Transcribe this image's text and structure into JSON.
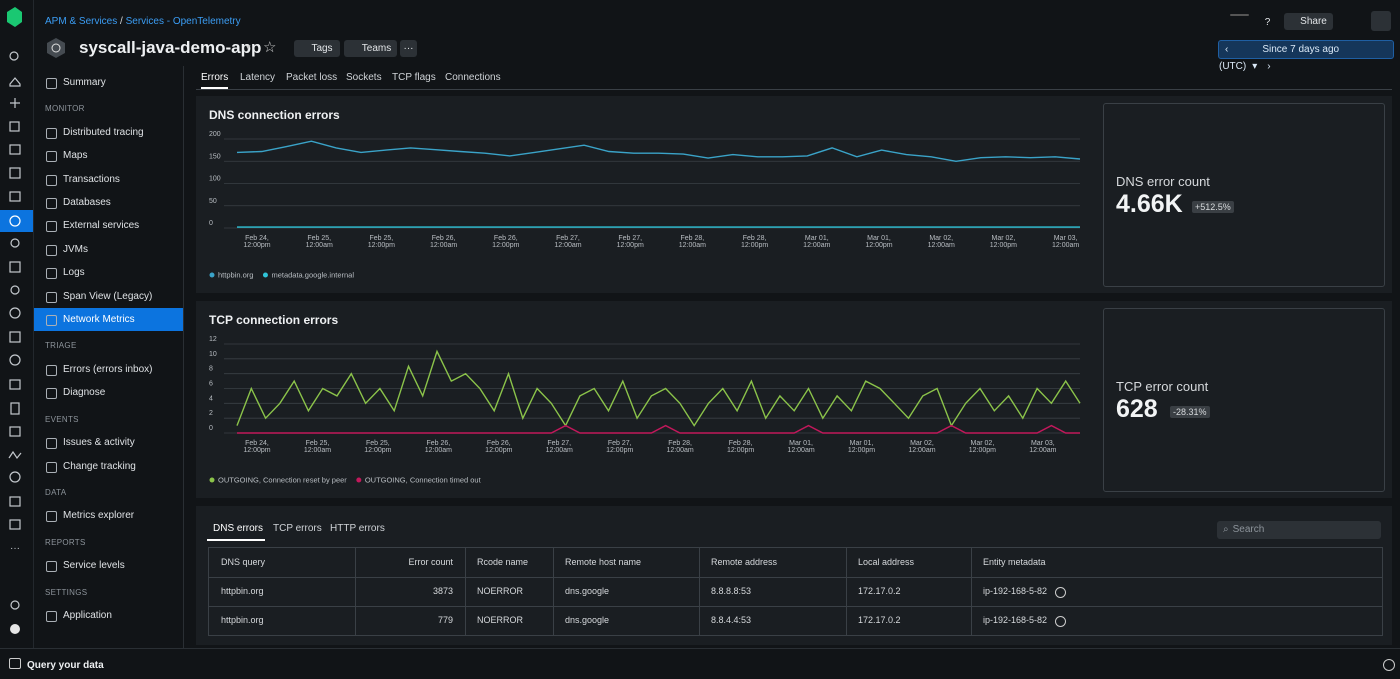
{
  "breadcrumb": {
    "parent": "APM & Services",
    "separator": "/",
    "current": "Services - OpenTelemetry"
  },
  "entity_name": "syscall-java-demo-app",
  "header_buttons": {
    "tags": "Tags",
    "teams": "Teams",
    "more": "···",
    "share": "Share"
  },
  "time_picker": "Since 7 days ago (UTC)",
  "sidebar": {
    "summary": "Summary",
    "sections": [
      {
        "heading": "MONITOR",
        "items": [
          "Distributed tracing",
          "Maps",
          "Transactions",
          "Databases",
          "External services",
          "JVMs",
          "Logs",
          "Span View (Legacy)",
          "Network Metrics"
        ]
      },
      {
        "heading": "TRIAGE",
        "items": [
          "Errors (errors inbox)",
          "Diagnose"
        ]
      },
      {
        "heading": "EVENTS",
        "items": [
          "Issues & activity",
          "Change tracking"
        ]
      },
      {
        "heading": "DATA",
        "items": [
          "Metrics explorer"
        ]
      },
      {
        "heading": "REPORTS",
        "items": [
          "Service levels"
        ]
      },
      {
        "heading": "SETTINGS",
        "items": [
          "Application"
        ]
      }
    ],
    "active": "Network Metrics"
  },
  "tabs": [
    "Errors",
    "Latency",
    "Packet loss",
    "Sockets",
    "TCP flags",
    "Connections"
  ],
  "dns_chart": {
    "type": "line",
    "title": "DNS connection errors",
    "ylim": [
      0,
      200
    ],
    "yticks": [
      0,
      50,
      100,
      150,
      200
    ],
    "x_tick_labels": [
      {
        "date": "Feb 24,",
        "time": "12:00pm"
      },
      {
        "date": "Feb 25,",
        "time": "12:00am"
      },
      {
        "date": "Feb 25,",
        "time": "12:00pm"
      },
      {
        "date": "Feb 26,",
        "time": "12:00am"
      },
      {
        "date": "Feb 26,",
        "time": "12:00pm"
      },
      {
        "date": "Feb 27,",
        "time": "12:00am"
      },
      {
        "date": "Feb 27,",
        "time": "12:00pm"
      },
      {
        "date": "Feb 28,",
        "time": "12:00am"
      },
      {
        "date": "Feb 28,",
        "time": "12:00pm"
      },
      {
        "date": "Mar 01,",
        "time": "12:00am"
      },
      {
        "date": "Mar 01,",
        "time": "12:00pm"
      },
      {
        "date": "Mar 02,",
        "time": "12:00am"
      },
      {
        "date": "Mar 02,",
        "time": "12:00pm"
      },
      {
        "date": "Mar 03,",
        "time": "12:00am"
      }
    ],
    "series": [
      {
        "name": "httpbin.org",
        "color": "#3aa3c8",
        "values": [
          170,
          172,
          183,
          195,
          180,
          170,
          175,
          180,
          176,
          172,
          168,
          162,
          170,
          178,
          186,
          172,
          168,
          168,
          166,
          157,
          165,
          160,
          160,
          162,
          180,
          160,
          175,
          165,
          160,
          150,
          158,
          160,
          158,
          160,
          155
        ]
      },
      {
        "name": "metadata.google.internal",
        "color": "#2fc4d8",
        "values": [
          2,
          2,
          2,
          2,
          2,
          2,
          2,
          2,
          2,
          2,
          2,
          2,
          2,
          2,
          2,
          2,
          2,
          2,
          2,
          2,
          2,
          2,
          2,
          2,
          2,
          2,
          2,
          2,
          2,
          2,
          2,
          2,
          2,
          2,
          2
        ]
      }
    ]
  },
  "dns_billboard": {
    "label": "DNS error count",
    "value": "4.66K",
    "change": "+512.5%"
  },
  "tcp_chart": {
    "type": "line",
    "title": "TCP connection errors",
    "ylim": [
      0,
      12
    ],
    "yticks": [
      0,
      2,
      4,
      6,
      8,
      10,
      12
    ],
    "x_tick_labels": [
      {
        "date": "Feb 24,",
        "time": "12:00pm"
      },
      {
        "date": "Feb 25,",
        "time": "12:00am"
      },
      {
        "date": "Feb 25,",
        "time": "12:00pm"
      },
      {
        "date": "Feb 26,",
        "time": "12:00am"
      },
      {
        "date": "Feb 26,",
        "time": "12:00pm"
      },
      {
        "date": "Feb 27,",
        "time": "12:00am"
      },
      {
        "date": "Feb 27,",
        "time": "12:00pm"
      },
      {
        "date": "Feb 28,",
        "time": "12:00am"
      },
      {
        "date": "Feb 28,",
        "time": "12:00pm"
      },
      {
        "date": "Mar 01,",
        "time": "12:00am"
      },
      {
        "date": "Mar 01,",
        "time": "12:00pm"
      },
      {
        "date": "Mar 02,",
        "time": "12:00am"
      },
      {
        "date": "Mar 02,",
        "time": "12:00pm"
      },
      {
        "date": "Mar 03,",
        "time": "12:00am"
      }
    ],
    "series": [
      {
        "name": "OUTGOING, Connection reset by peer",
        "color": "#8bc34a",
        "values": [
          1,
          6,
          2,
          4,
          7,
          3,
          6,
          5,
          8,
          4,
          6,
          3,
          9,
          5,
          11,
          7,
          8,
          6,
          3,
          8,
          2,
          6,
          4,
          1,
          5,
          6,
          3,
          7,
          2,
          5,
          6,
          4,
          1,
          4,
          6,
          3,
          7,
          2,
          5,
          3,
          6,
          2,
          5,
          3,
          7,
          6,
          4,
          2,
          5,
          6,
          1,
          4,
          6,
          3,
          5,
          2,
          6,
          4,
          7,
          4
        ]
      },
      {
        "name": "OUTGOING, Connection timed out",
        "color": "#c2185b",
        "values": [
          0,
          0,
          0,
          0,
          0,
          0,
          0,
          0,
          0,
          0,
          0,
          0,
          0,
          0,
          0,
          0,
          0,
          0,
          0,
          0,
          0,
          0,
          0,
          1,
          0,
          0,
          0,
          0,
          0,
          0,
          1,
          0,
          0,
          0,
          0,
          0,
          0,
          0,
          0,
          0,
          1,
          0,
          0,
          0,
          0,
          0,
          0,
          0,
          0,
          0,
          1,
          0,
          0,
          0,
          0,
          0,
          0,
          1,
          0,
          0
        ]
      }
    ]
  },
  "tcp_billboard": {
    "label": "TCP error count",
    "value": "628",
    "change": "-28.31%"
  },
  "table_tabs": [
    "DNS errors",
    "TCP errors",
    "HTTP errors"
  ],
  "search_placeholder": "Search",
  "table": {
    "columns": [
      "DNS query",
      "Error count",
      "Rcode name",
      "Remote host name",
      "Remote address",
      "Local address",
      "Entity metadata"
    ],
    "rows": [
      [
        "httpbin.org",
        3873,
        "NOERROR",
        "dns.google",
        "8.8.8.8:53",
        "172.17.0.2",
        "ip-192-168-5-82"
      ],
      [
        "httpbin.org",
        779,
        "NOERROR",
        "dns.google",
        "8.8.4.4:53",
        "172.17.0.2",
        "ip-192-168-5-82"
      ]
    ]
  },
  "footer": "Query your data"
}
